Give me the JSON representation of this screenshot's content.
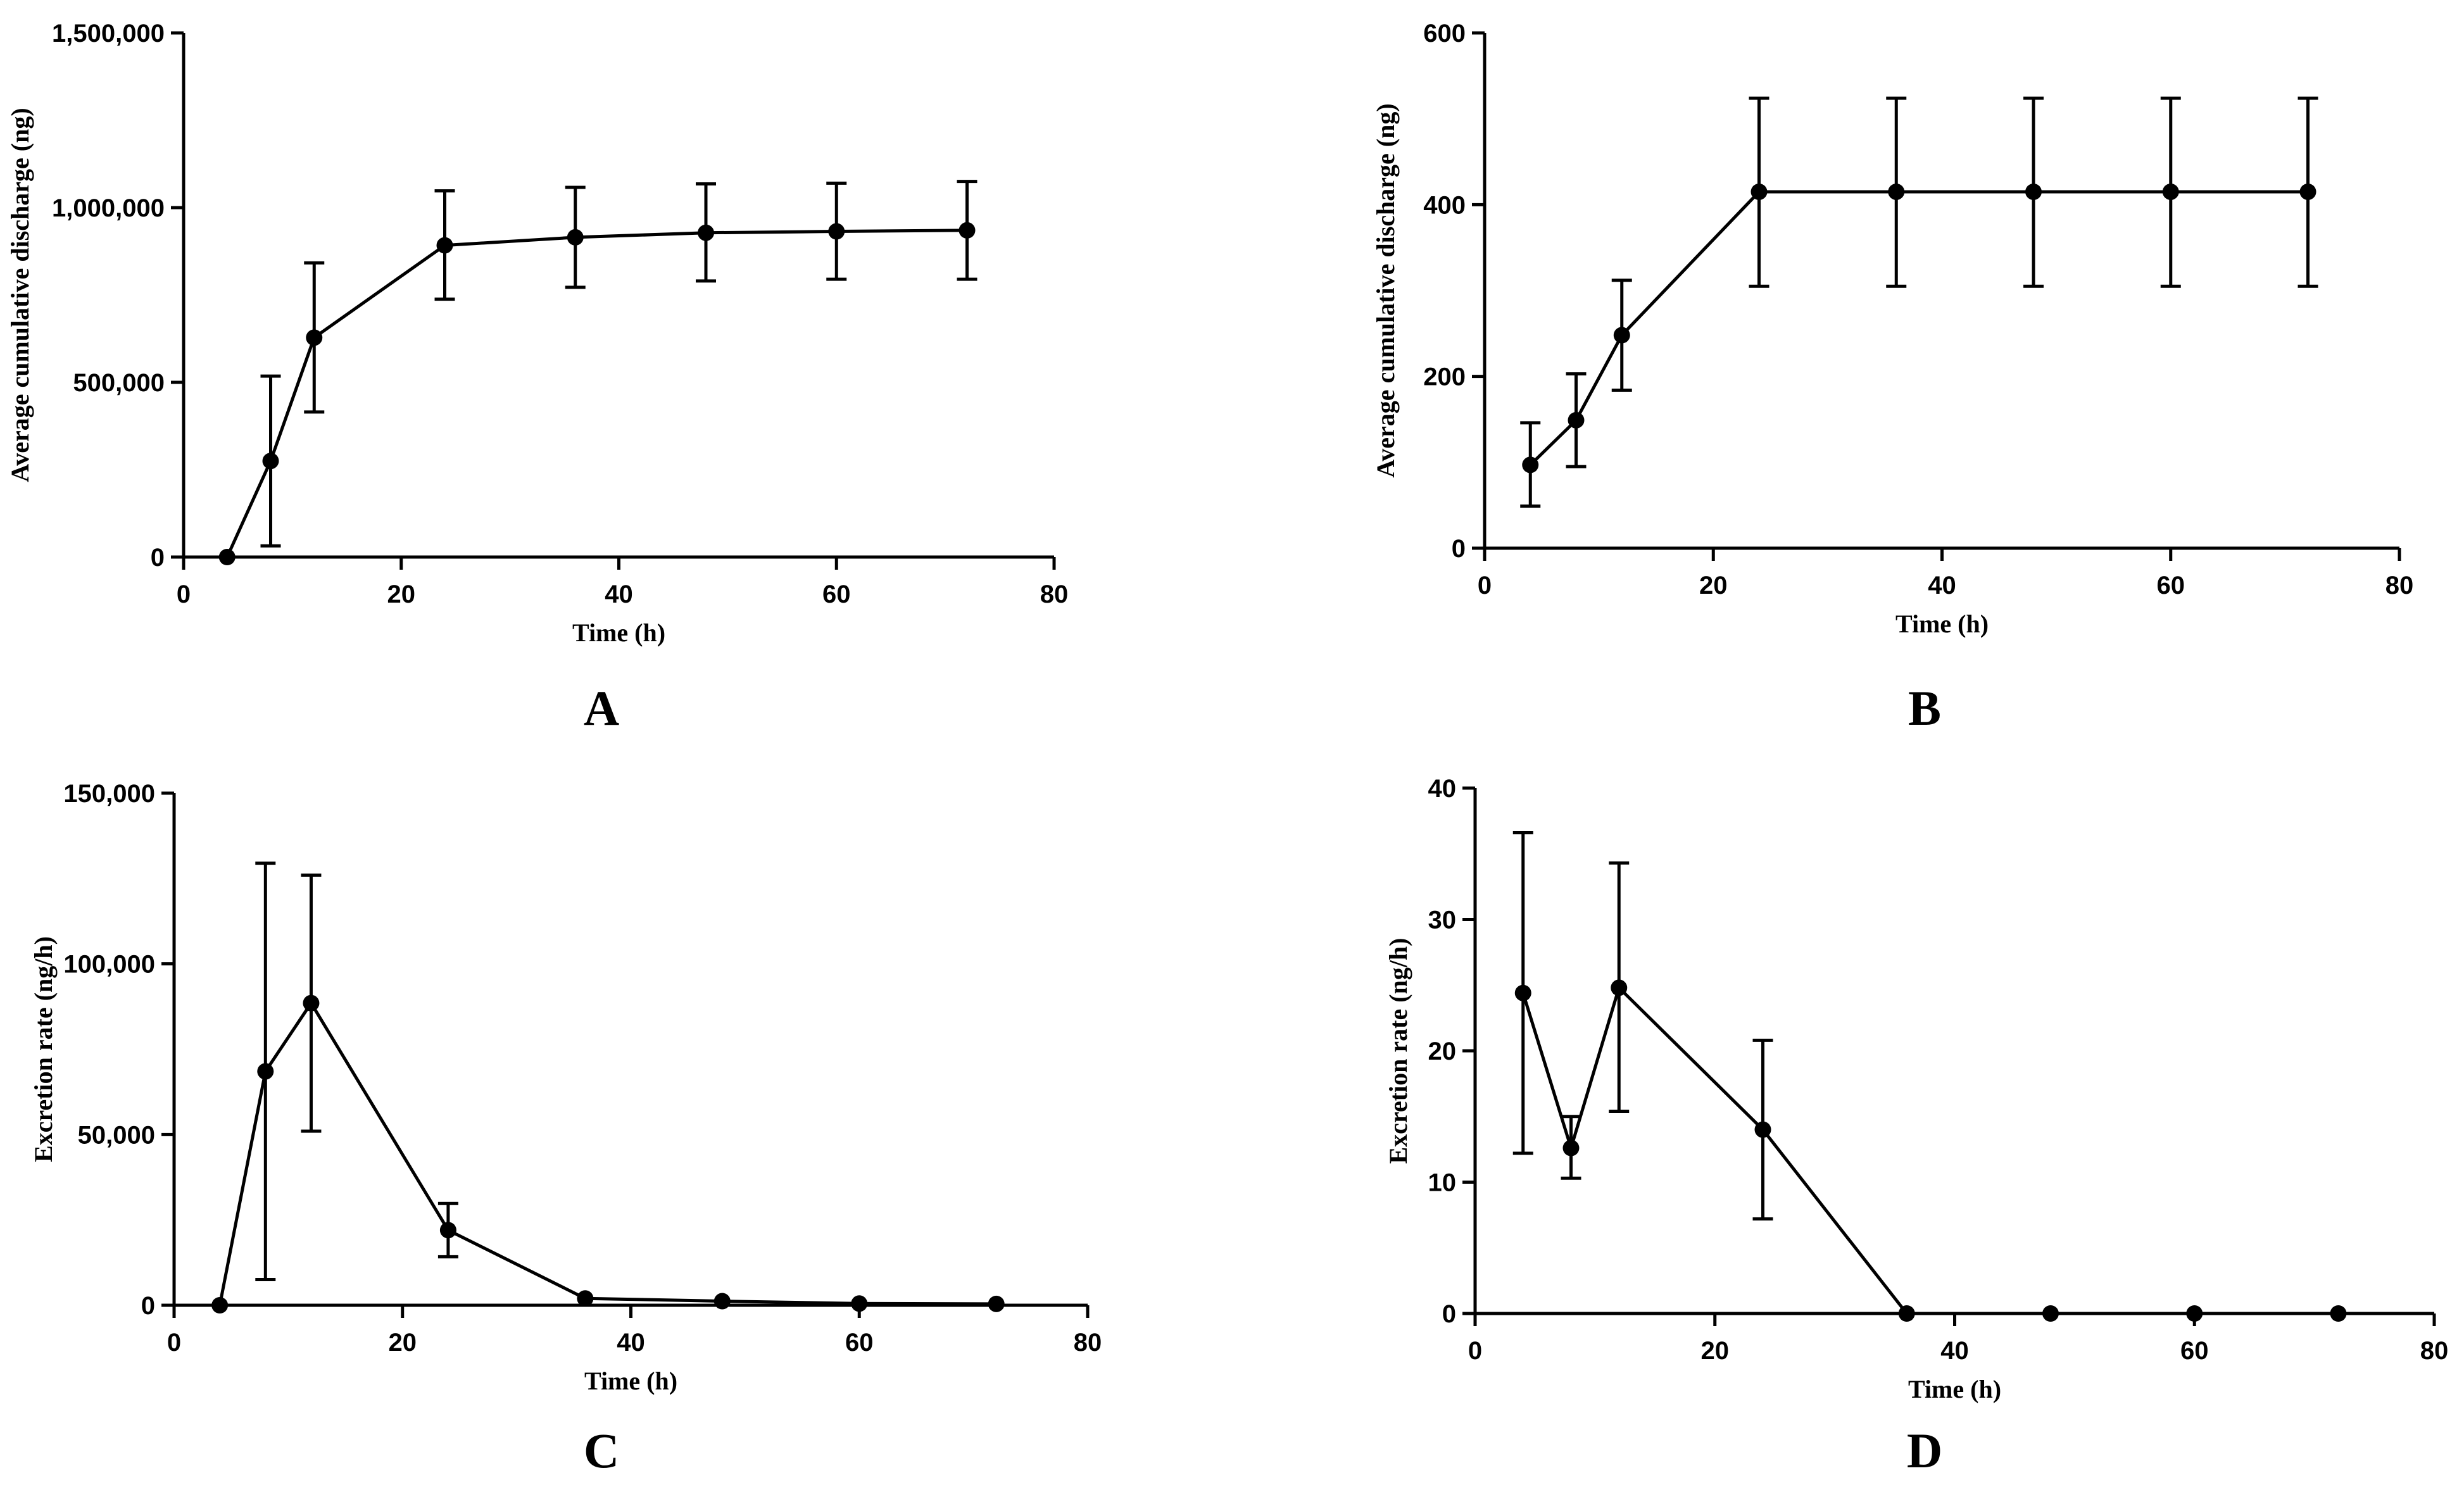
{
  "chart_data": [
    {
      "panel_label": "A",
      "type": "line",
      "title": "",
      "xlabel": "Time (h)",
      "ylabel": "Average cumulative discharge (ng)",
      "xlim": [
        0,
        80
      ],
      "ylim": [
        0,
        1500000
      ],
      "x_ticks": [
        0,
        20,
        40,
        60,
        80
      ],
      "x_tick_labels": [
        "0",
        "20",
        "40",
        "60",
        "80"
      ],
      "y_ticks": [
        0,
        500000,
        1000000,
        1500000
      ],
      "y_tick_labels": [
        "0",
        "500,000",
        "1,000,000",
        "1,500,000"
      ],
      "grid": false,
      "series": [
        {
          "name": "",
          "x": [
            4,
            8,
            12,
            24,
            36,
            48,
            60,
            72
          ],
          "y": [
            0,
            275000,
            628000,
            892000,
            915000,
            928000,
            932000,
            935000
          ],
          "error_upper": [
            0,
            518000,
            842000,
            1048000,
            1058000,
            1068000,
            1070000,
            1075000
          ],
          "error_lower": [
            0,
            32000,
            415000,
            738000,
            772000,
            790000,
            795000,
            795000
          ]
        }
      ]
    },
    {
      "panel_label": "B",
      "type": "line",
      "title": "",
      "xlabel": "Time (h)",
      "ylabel": "Average cumulative discharge (ng)",
      "xlim": [
        0,
        80
      ],
      "ylim": [
        0,
        600
      ],
      "x_ticks": [
        0,
        20,
        40,
        60,
        80
      ],
      "x_tick_labels": [
        "0",
        "20",
        "40",
        "60",
        "80"
      ],
      "y_ticks": [
        0,
        200,
        400,
        600
      ],
      "y_tick_labels": [
        "0",
        "200",
        "400",
        "600"
      ],
      "grid": false,
      "series": [
        {
          "name": "",
          "x": [
            4,
            8,
            12,
            24,
            36,
            48,
            60,
            72
          ],
          "y": [
            97,
            149,
            248,
            415,
            415,
            415,
            415,
            415
          ],
          "error_upper": [
            146,
            203,
            312,
            524,
            524,
            524,
            524,
            524
          ],
          "error_lower": [
            49,
            95,
            184,
            305,
            305,
            305,
            305,
            305
          ]
        }
      ]
    },
    {
      "panel_label": "C",
      "type": "line",
      "title": "",
      "xlabel": "Time (h)",
      "ylabel": "Excretion rate (ng/h)",
      "xlim": [
        0,
        80
      ],
      "ylim": [
        0,
        150000
      ],
      "x_ticks": [
        0,
        20,
        40,
        60,
        80
      ],
      "x_tick_labels": [
        "0",
        "20",
        "40",
        "60",
        "80"
      ],
      "y_ticks": [
        0,
        50000,
        100000,
        150000
      ],
      "y_tick_labels": [
        "0",
        "50,000",
        "100,000",
        "150,000"
      ],
      "grid": false,
      "series": [
        {
          "name": "",
          "x": [
            4,
            8,
            12,
            24,
            36,
            48,
            60,
            72
          ],
          "y": [
            0,
            68500,
            88500,
            22000,
            2000,
            1200,
            500,
            400
          ],
          "error_upper": [
            0,
            129500,
            126000,
            29800,
            2000,
            1200,
            500,
            400
          ],
          "error_lower": [
            0,
            7500,
            51000,
            14200,
            2000,
            1200,
            500,
            400
          ]
        }
      ]
    },
    {
      "panel_label": "D",
      "type": "line",
      "title": "",
      "xlabel": "Time (h)",
      "ylabel": "Excretion rate (ng/h)",
      "xlim": [
        0,
        80
      ],
      "ylim": [
        0,
        40
      ],
      "x_ticks": [
        0,
        20,
        40,
        60,
        80
      ],
      "x_tick_labels": [
        "0",
        "20",
        "40",
        "60",
        "80"
      ],
      "y_ticks": [
        0,
        10,
        20,
        30,
        40
      ],
      "y_tick_labels": [
        "0",
        "10",
        "20",
        "30",
        "40"
      ],
      "grid": false,
      "series": [
        {
          "name": "",
          "x": [
            4,
            8,
            12,
            24,
            36,
            48,
            60,
            72
          ],
          "y": [
            24.4,
            12.6,
            24.8,
            14.0,
            0,
            0,
            0,
            0
          ],
          "error_upper": [
            36.6,
            15.0,
            34.3,
            20.8,
            0,
            0,
            0,
            0
          ],
          "error_lower": [
            12.2,
            10.3,
            15.4,
            7.2,
            0,
            0,
            0,
            0
          ]
        }
      ]
    }
  ]
}
